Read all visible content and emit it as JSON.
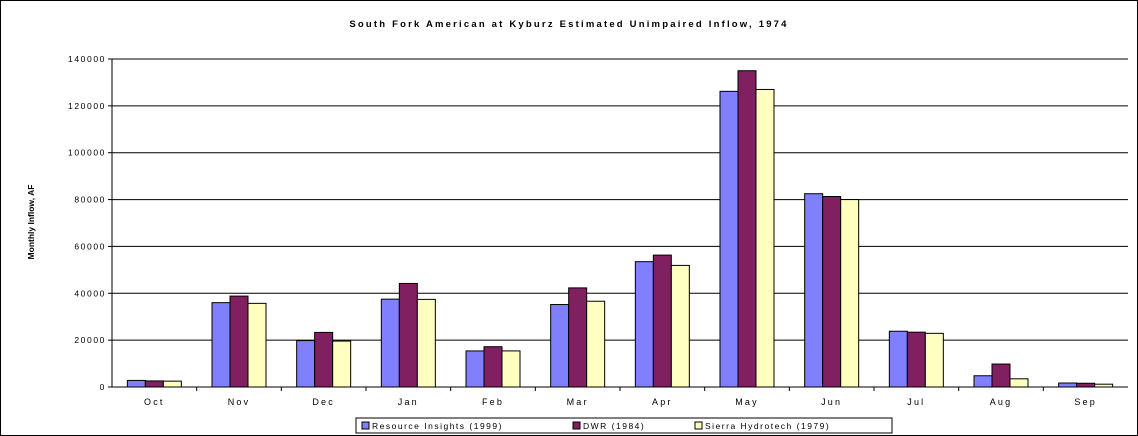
{
  "chart_data": {
    "type": "bar",
    "title": "South Fork American at Kyburz Estimated Unimpaired Inflow, 1974",
    "xlabel": "",
    "ylabel": "Monthly Inflow, AF",
    "ylim": [
      0,
      140000
    ],
    "yticks": [
      0,
      20000,
      40000,
      60000,
      80000,
      100000,
      120000,
      140000
    ],
    "ytick_labels": [
      "0",
      "20000",
      "40000",
      "60000",
      "80000",
      "100000",
      "120000",
      "140000"
    ],
    "grid": "horizontal",
    "legend_position": "bottom",
    "categories": [
      "Oct",
      "Nov",
      "Dec",
      "Jan",
      "Feb",
      "Mar",
      "Apr",
      "May",
      "Jun",
      "Jul",
      "Aug",
      "Sep"
    ],
    "series": [
      {
        "name": "Resource Insights (1999)",
        "color": "#8080ff",
        "values": [
          2800,
          36000,
          19800,
          37500,
          15400,
          35200,
          53500,
          126200,
          82500,
          23800,
          4800,
          1700
        ]
      },
      {
        "name": "DWR (1984)",
        "color": "#802060",
        "values": [
          2600,
          38800,
          23300,
          44200,
          17200,
          42300,
          56300,
          135000,
          81300,
          23400,
          9800,
          1600
        ]
      },
      {
        "name": "Sierra Hydrotech (1979)",
        "color": "#ffffc0",
        "values": [
          2500,
          35700,
          19600,
          37400,
          15400,
          36600,
          51900,
          127000,
          80000,
          22900,
          3500,
          1200
        ]
      }
    ]
  }
}
